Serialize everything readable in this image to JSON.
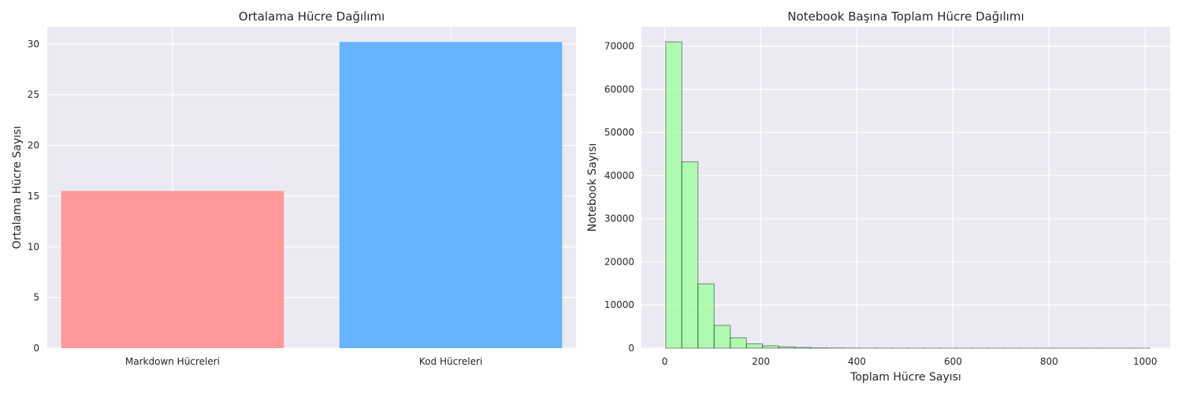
{
  "chart_data": [
    {
      "type": "bar",
      "title": "Ortalama Hücre Dağılımı",
      "xlabel": "",
      "ylabel": "Ortalama Hücre Sayısı",
      "categories": [
        "Markdown Hücreleri",
        "Kod Hücreleri"
      ],
      "values": [
        15.5,
        30.2
      ],
      "colors": [
        "#ff9999",
        "#66b3ff"
      ],
      "ylim": [
        0,
        31.7
      ],
      "yticks": [
        0,
        5,
        10,
        15,
        20,
        25,
        30
      ],
      "grid": true
    },
    {
      "type": "bar",
      "subtype": "histogram",
      "title": "Notebook Başına Toplam Hücre Dağılımı",
      "xlabel": "Toplam Hücre Sayısı",
      "ylabel": "Notebook Sayısı",
      "bin_start": 2,
      "bin_width": 33.6,
      "counts": [
        71000,
        43200,
        14900,
        5300,
        2400,
        1000,
        550,
        300,
        150,
        80,
        50,
        30,
        20,
        15,
        10,
        8,
        6,
        5,
        4,
        3,
        3,
        2,
        2,
        2,
        1,
        1,
        1,
        1,
        1,
        1
      ],
      "color": "#99ff99",
      "edgecolor": "#000000",
      "xlim": [
        -48.5,
        1052
      ],
      "ylim": [
        0,
        74500
      ],
      "xticks": [
        0,
        200,
        400,
        600,
        800,
        1000
      ],
      "yticks": [
        0,
        10000,
        20000,
        30000,
        40000,
        50000,
        60000,
        70000
      ],
      "grid": true
    }
  ]
}
